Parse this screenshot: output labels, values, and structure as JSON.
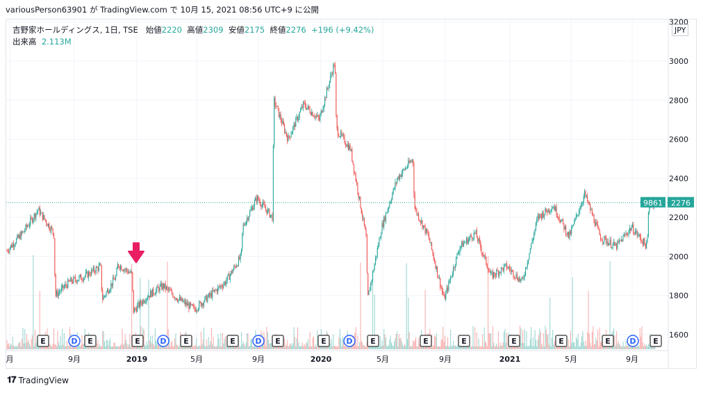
{
  "header": {
    "published_by": "variousPerson63901 が TradingView.com で 10月 15, 2021 08:56 UTC+9 に公開"
  },
  "legend": {
    "symbol": "吉野家ホールディングス, 1日, TSE",
    "open_label": "始値",
    "open": "2220",
    "high_label": "高値",
    "high": "2309",
    "low_label": "安値",
    "low": "2175",
    "close_label": "終値",
    "close": "2276",
    "change": "+196 (+9.42%)",
    "volume_label": "出来高",
    "volume": "2.113M"
  },
  "currency": "JPY",
  "price_tags": {
    "volume_tag": "9861",
    "price_tag": "2276"
  },
  "footer": {
    "brand": "TradingView"
  },
  "colors": {
    "up": "#26a69a",
    "down": "#ef5350",
    "arrow": "#e91e63",
    "event_d": "#2962ff"
  },
  "chart_data": {
    "type": "candlestick",
    "title": "吉野家ホールディングス, 1日, TSE",
    "y_ticks": [
      1600,
      1800,
      2000,
      2200,
      2400,
      2600,
      2800,
      3000,
      3200
    ],
    "ylim": [
      1540,
      3220
    ],
    "x_tick_labels": [
      "月",
      "9月",
      "2019",
      "5月",
      "9月",
      "2020",
      "5月",
      "9月",
      "2021",
      "5月",
      "9月"
    ],
    "last_price": 2276,
    "approx_close_path": [
      [
        "2018-05",
        2030
      ],
      [
        "2018-06",
        2120
      ],
      [
        "2018-07",
        2240
      ],
      [
        "2018-08",
        2120
      ],
      [
        "2018-08",
        1800
      ],
      [
        "2018-09",
        1870
      ],
      [
        "2018-10",
        1900
      ],
      [
        "2018-11",
        1950
      ],
      [
        "2018-11",
        1780
      ],
      [
        "2018-12",
        1900
      ],
      [
        "2018-12",
        1960
      ],
      [
        "2019-01",
        1910
      ],
      [
        "2019-01",
        1720
      ],
      [
        "2019-02",
        1800
      ],
      [
        "2019-03",
        1850
      ],
      [
        "2019-04",
        1780
      ],
      [
        "2019-05",
        1730
      ],
      [
        "2019-06",
        1800
      ],
      [
        "2019-07",
        1870
      ],
      [
        "2019-08",
        2000
      ],
      [
        "2019-08",
        2150
      ],
      [
        "2019-09",
        2300
      ],
      [
        "2019-10",
        2200
      ],
      [
        "2019-10",
        2800
      ],
      [
        "2019-11",
        2600
      ],
      [
        "2019-12",
        2780
      ],
      [
        "2020-01",
        2700
      ],
      [
        "2020-02",
        3000
      ],
      [
        "2020-02",
        2650
      ],
      [
        "2020-03",
        2550
      ],
      [
        "2020-04",
        2100
      ],
      [
        "2020-04",
        1780
      ],
      [
        "2020-05",
        2150
      ],
      [
        "2020-06",
        2400
      ],
      [
        "2020-07",
        2500
      ],
      [
        "2020-07",
        2250
      ],
      [
        "2020-08",
        2100
      ],
      [
        "2020-09",
        1780
      ],
      [
        "2020-10",
        2050
      ],
      [
        "2020-11",
        2120
      ],
      [
        "2020-12",
        1900
      ],
      [
        "2021-01",
        1950
      ],
      [
        "2021-02",
        1870
      ],
      [
        "2021-03",
        2200
      ],
      [
        "2021-04",
        2260
      ],
      [
        "2021-05",
        2100
      ],
      [
        "2021-06",
        2320
      ],
      [
        "2021-07",
        2100
      ],
      [
        "2021-08",
        2050
      ],
      [
        "2021-09",
        2150
      ],
      [
        "2021-10",
        2050
      ],
      [
        "2021-10",
        2250
      ],
      [
        "2021-10",
        2276
      ]
    ],
    "event_markers": [
      "E",
      "D",
      "E",
      "E",
      "D",
      "E",
      "E",
      "D",
      "E",
      "E",
      "D",
      "E",
      "E",
      "E",
      "E",
      "E",
      "E",
      "D",
      "E"
    ]
  }
}
